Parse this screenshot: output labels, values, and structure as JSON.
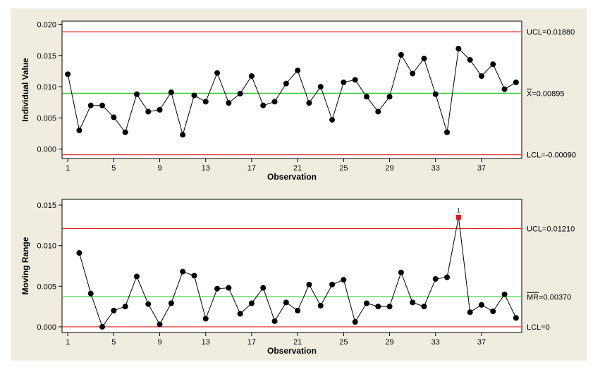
{
  "chart_data": [
    {
      "type": "line",
      "ylabel": "Individual Value",
      "xlabel": "Observation",
      "x_ticks": [
        1,
        5,
        9,
        13,
        17,
        21,
        25,
        29,
        33,
        37
      ],
      "y_ticks": [
        "0.000",
        "0.005",
        "0.010",
        "0.015",
        "0.020"
      ],
      "ylim": [
        -0.0015,
        0.0205
      ],
      "xlim": [
        0.5,
        40.5
      ],
      "x": [
        1,
        2,
        3,
        4,
        5,
        6,
        7,
        8,
        9,
        10,
        11,
        12,
        13,
        14,
        15,
        16,
        17,
        18,
        19,
        20,
        21,
        22,
        23,
        24,
        25,
        26,
        27,
        28,
        29,
        30,
        31,
        32,
        33,
        34,
        35,
        36,
        37,
        38,
        39,
        40
      ],
      "values": [
        0.012,
        0.003,
        0.007,
        0.007,
        0.0051,
        0.0027,
        0.0088,
        0.006,
        0.0063,
        0.0091,
        0.0023,
        0.0086,
        0.0076,
        0.0122,
        0.0074,
        0.0089,
        0.0117,
        0.007,
        0.0076,
        0.0105,
        0.0126,
        0.0074,
        0.01,
        0.0047,
        0.0107,
        0.0111,
        0.0084,
        0.006,
        0.0084,
        0.0151,
        0.0121,
        0.0145,
        0.0088,
        0.0027,
        0.0161,
        0.0143,
        0.0117,
        0.0136,
        0.0096,
        0.0107
      ],
      "limits": [
        {
          "value": 0.0188,
          "label": "UCL=0.01880",
          "color": "#e0201c",
          "kind": "ucl"
        },
        {
          "value": 0.00895,
          "label": "X=0.00895",
          "color": "#22c822",
          "kind": "center",
          "bar": true
        },
        {
          "value": -0.0009,
          "label": "LCL=-0.00090",
          "color": "#e0201c",
          "kind": "lcl"
        }
      ],
      "flagged": []
    },
    {
      "type": "line",
      "ylabel": "Moving Range",
      "xlabel": "Observation",
      "x_ticks": [
        1,
        5,
        9,
        13,
        17,
        21,
        25,
        29,
        33,
        37
      ],
      "y_ticks": [
        "0.000",
        "0.005",
        "0.010",
        "0.015"
      ],
      "ylim": [
        -0.0007,
        0.0157
      ],
      "xlim": [
        0.5,
        40.5
      ],
      "x": [
        2,
        3,
        4,
        5,
        6,
        7,
        8,
        9,
        10,
        11,
        12,
        13,
        14,
        15,
        16,
        17,
        18,
        19,
        20,
        21,
        22,
        23,
        24,
        25,
        26,
        27,
        28,
        29,
        30,
        31,
        32,
        33,
        34,
        35,
        36,
        37,
        38,
        39,
        40
      ],
      "values": [
        0.0091,
        0.0041,
        0.0,
        0.002,
        0.0025,
        0.0062,
        0.0028,
        0.0003,
        0.0029,
        0.0068,
        0.0063,
        0.001,
        0.0047,
        0.0048,
        0.0016,
        0.0029,
        0.0048,
        0.0007,
        0.003,
        0.002,
        0.0052,
        0.0026,
        0.0052,
        0.0058,
        0.0006,
        0.0029,
        0.0025,
        0.0025,
        0.0067,
        0.003,
        0.0025,
        0.0059,
        0.0061,
        0.0135,
        0.0018,
        0.0027,
        0.0019,
        0.004,
        0.0011
      ],
      "limits": [
        {
          "value": 0.0121,
          "label": "UCL=0.01210",
          "color": "#e0201c",
          "kind": "ucl"
        },
        {
          "value": 0.0037,
          "label": "MR=0.00370",
          "color": "#22c822",
          "kind": "center",
          "bar": true
        },
        {
          "value": 0.0,
          "label": "LCL=0",
          "color": "#e0201c",
          "kind": "lcl"
        }
      ],
      "flagged": [
        {
          "x": 35,
          "label": "1"
        }
      ]
    }
  ]
}
